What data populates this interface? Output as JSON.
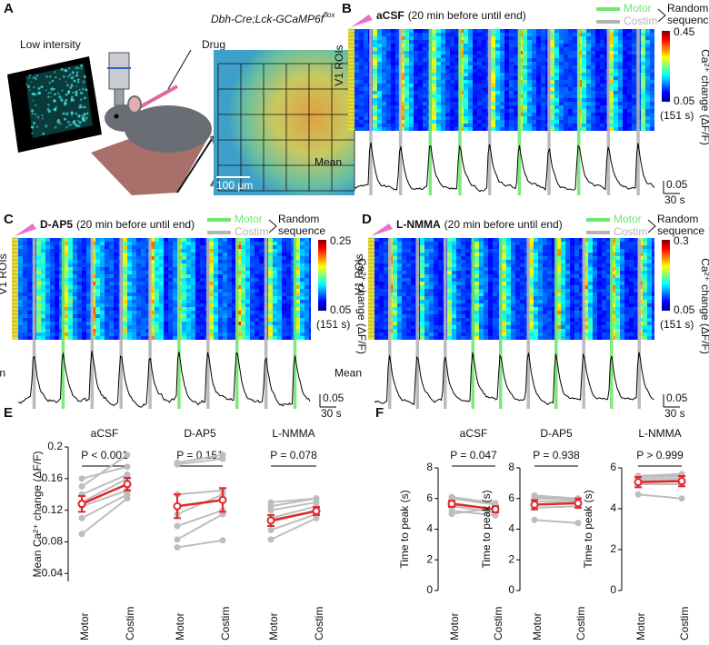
{
  "panel_a": {
    "label": "A",
    "caption": "Low intersity",
    "drug": "Drug",
    "genotype": "Dbh-Cre;Lck-GCaMP6f",
    "genotype_sup": "flox",
    "scale": "100 μm"
  },
  "legend": {
    "motor": "Motor",
    "costim": "Costim",
    "random": "Random",
    "sequence": "sequence",
    "motor_color": "#6ee86e",
    "costim_color": "#b4b4b4"
  },
  "imaging": [
    {
      "label": "B",
      "drug": "aCSF",
      "timing": "(20 min before until end)",
      "rows": "V1 ROIs",
      "cmax": 0.45,
      "cmin": 0.05,
      "duration": "(151 s)",
      "cbar_label": "Ca²⁺ change (ΔF/F)",
      "trace": "Mean",
      "scale_y": 0.05,
      "scale_x": "30 s"
    },
    {
      "label": "C",
      "drug": "D-AP5",
      "timing": "(20 min before until end)",
      "rows": "V1 ROIs",
      "cmax": 0.25,
      "cmin": 0.05,
      "duration": "(151 s)",
      "cbar_label": "Ca²⁺ change (ΔF/F)",
      "trace": "Mean",
      "scale_y": 0.05,
      "scale_x": "30 s"
    },
    {
      "label": "D",
      "drug": "L-NMMA",
      "timing": "(20 min before until end)",
      "rows": "V1 ROIs",
      "cmax": 0.3,
      "cmin": 0.05,
      "duration": "(151 s)",
      "cbar_label": "Ca²⁺ change (ΔF/F)",
      "trace": "Mean",
      "scale_y": 0.05,
      "scale_x": "30 s"
    }
  ],
  "panel_e": {
    "label": "E"
  },
  "panel_f": {
    "label": "F"
  },
  "chart_data": [
    {
      "type": "paired",
      "title": "aCSF",
      "p_label": "P < 0.001",
      "ylabel": "Mean Ca²⁺ change (ΔF/F)",
      "categories": [
        "Motor",
        "Costim"
      ],
      "subjects": [
        [
          0.09,
          0.135
        ],
        [
          0.11,
          0.14
        ],
        [
          0.125,
          0.145
        ],
        [
          0.13,
          0.16
        ],
        [
          0.14,
          0.165
        ],
        [
          0.15,
          0.19
        ],
        [
          0.16,
          0.175
        ]
      ],
      "mean": [
        0.128,
        0.153
      ],
      "error": [
        0.01,
        0.008
      ],
      "ylim": [
        0.03,
        0.2
      ],
      "yticks": [
        0.04,
        0.08,
        0.12,
        0.16,
        0.2
      ],
      "subject_color": "#bdbdbd",
      "mean_color": "#e3262a"
    },
    {
      "type": "paired",
      "title": "D-AP5",
      "p_label": "P = 0.151",
      "categories": [
        "Motor",
        "Costim"
      ],
      "subjects": [
        [
          0.073,
          0.082
        ],
        [
          0.083,
          0.115
        ],
        [
          0.1,
          0.12
        ],
        [
          0.115,
          0.14
        ],
        [
          0.14,
          0.145
        ],
        [
          0.178,
          0.185
        ],
        [
          0.18,
          0.19
        ]
      ],
      "mean": [
        0.125,
        0.133
      ],
      "error": [
        0.015,
        0.015
      ],
      "ylim": [
        0.03,
        0.2
      ],
      "subject_color": "#bdbdbd",
      "mean_color": "#e3262a"
    },
    {
      "type": "paired",
      "title": "L-NMMA",
      "p_label": "P = 0.078",
      "categories": [
        "Motor",
        "Costim"
      ],
      "subjects": [
        [
          0.083,
          0.11
        ],
        [
          0.095,
          0.115
        ],
        [
          0.105,
          0.12
        ],
        [
          0.11,
          0.125
        ],
        [
          0.12,
          0.13
        ],
        [
          0.125,
          0.135
        ],
        [
          0.13,
          0.135
        ]
      ],
      "mean": [
        0.107,
        0.119
      ],
      "error": [
        0.007,
        0.005
      ],
      "ylim": [
        0.03,
        0.2
      ],
      "subject_color": "#bdbdbd",
      "mean_color": "#e3262a"
    },
    {
      "type": "paired",
      "title": "aCSF",
      "p_label": "P = 0.047",
      "ylabel": "Time to peak (s)",
      "categories": [
        "Motor",
        "Costim"
      ],
      "subjects": [
        [
          5.2,
          4.9
        ],
        [
          5.5,
          5.1
        ],
        [
          5.7,
          5.3
        ],
        [
          6.0,
          5.6
        ],
        [
          6.1,
          5.7
        ],
        [
          5.0,
          5.4
        ]
      ],
      "mean": [
        5.65,
        5.3
      ],
      "error": [
        0.2,
        0.2
      ],
      "ylim": [
        0,
        8
      ],
      "yticks": [
        0,
        2,
        4,
        6,
        8
      ],
      "subject_color": "#bdbdbd",
      "mean_color": "#e3262a"
    },
    {
      "type": "paired",
      "title": "D-AP5",
      "p_label": "P = 0.938",
      "ylabel": "Time to peak (s)",
      "categories": [
        "Motor",
        "Costim"
      ],
      "subjects": [
        [
          4.6,
          4.4
        ],
        [
          5.4,
          5.5
        ],
        [
          5.8,
          5.8
        ],
        [
          6.0,
          5.9
        ],
        [
          6.1,
          6.0
        ],
        [
          6.2,
          6.0
        ]
      ],
      "mean": [
        5.6,
        5.7
      ],
      "error": [
        0.3,
        0.3
      ],
      "ylim": [
        0,
        8
      ],
      "yticks": [
        0,
        2,
        4,
        6,
        8
      ],
      "subject_color": "#bdbdbd",
      "mean_color": "#e3262a"
    },
    {
      "type": "paired",
      "title": "L-NMMA",
      "p_label": "P > 0.999",
      "ylabel": "Time to peak (s)",
      "categories": [
        "Motor",
        "Costim"
      ],
      "subjects": [
        [
          4.7,
          4.5
        ],
        [
          5.2,
          5.2
        ],
        [
          5.4,
          5.4
        ],
        [
          5.5,
          5.5
        ],
        [
          5.6,
          5.6
        ],
        [
          5.6,
          5.7
        ]
      ],
      "mean": [
        5.3,
        5.35
      ],
      "error": [
        0.25,
        0.25
      ],
      "ylim": [
        0,
        6
      ],
      "yticks": [
        0,
        2,
        4,
        6
      ],
      "subject_color": "#bdbdbd",
      "mean_color": "#e3262a"
    }
  ]
}
